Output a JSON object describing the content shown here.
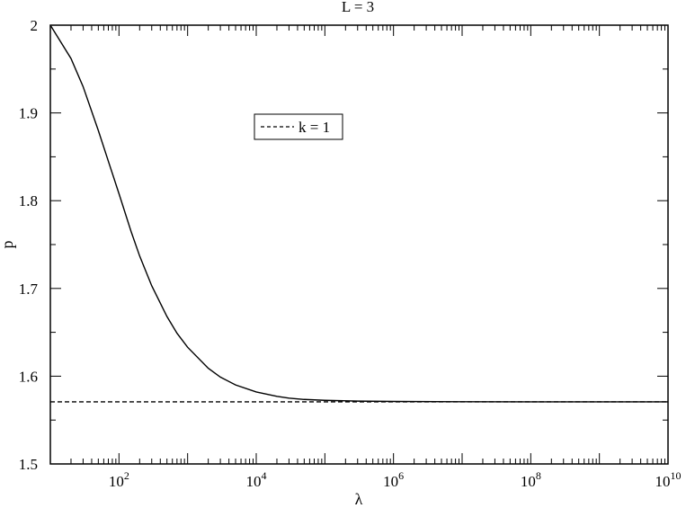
{
  "chart_data": {
    "type": "line",
    "title": "L = 3",
    "xlabel": "λ",
    "ylabel": "p",
    "xscale": "log",
    "xlim": [
      10,
      10000000000
    ],
    "ylim": [
      1.5,
      2.0
    ],
    "grid": false,
    "legend_position": "upper-middle",
    "x_tick_labels": [
      {
        "value": 100,
        "base": "10",
        "exp": "2"
      },
      {
        "value": 10000,
        "base": "10",
        "exp": "4"
      },
      {
        "value": 1000000,
        "base": "10",
        "exp": "6"
      },
      {
        "value": 100000000,
        "base": "10",
        "exp": "8"
      },
      {
        "value": 10000000000,
        "base": "10",
        "exp": "10"
      }
    ],
    "y_tick_labels": [
      "1.5",
      "1.6",
      "1.7",
      "1.8",
      "1.9",
      "2"
    ],
    "y_tick_values": [
      1.5,
      1.6,
      1.7,
      1.8,
      1.9,
      2.0
    ],
    "series": [
      {
        "name": "",
        "style": "solid",
        "color": "#000000",
        "x": [
          10,
          20,
          30,
          50,
          70,
          100,
          150,
          200,
          300,
          500,
          700,
          1000,
          2000,
          3000,
          5000,
          10000,
          20000,
          30000,
          50000,
          100000,
          300000,
          1000000,
          10000000,
          100000000,
          10000000000
        ],
        "y": [
          2.0,
          1.962,
          1.93,
          1.88,
          1.845,
          1.808,
          1.765,
          1.737,
          1.703,
          1.668,
          1.649,
          1.633,
          1.609,
          1.599,
          1.59,
          1.582,
          1.577,
          1.575,
          1.5735,
          1.5725,
          1.5716,
          1.5712,
          1.5709,
          1.5708,
          1.5708
        ]
      },
      {
        "name": "k = 1",
        "style": "dashed",
        "color": "#000000",
        "x": [
          10,
          10000000000
        ],
        "y": [
          1.5708,
          1.5708
        ]
      }
    ]
  }
}
